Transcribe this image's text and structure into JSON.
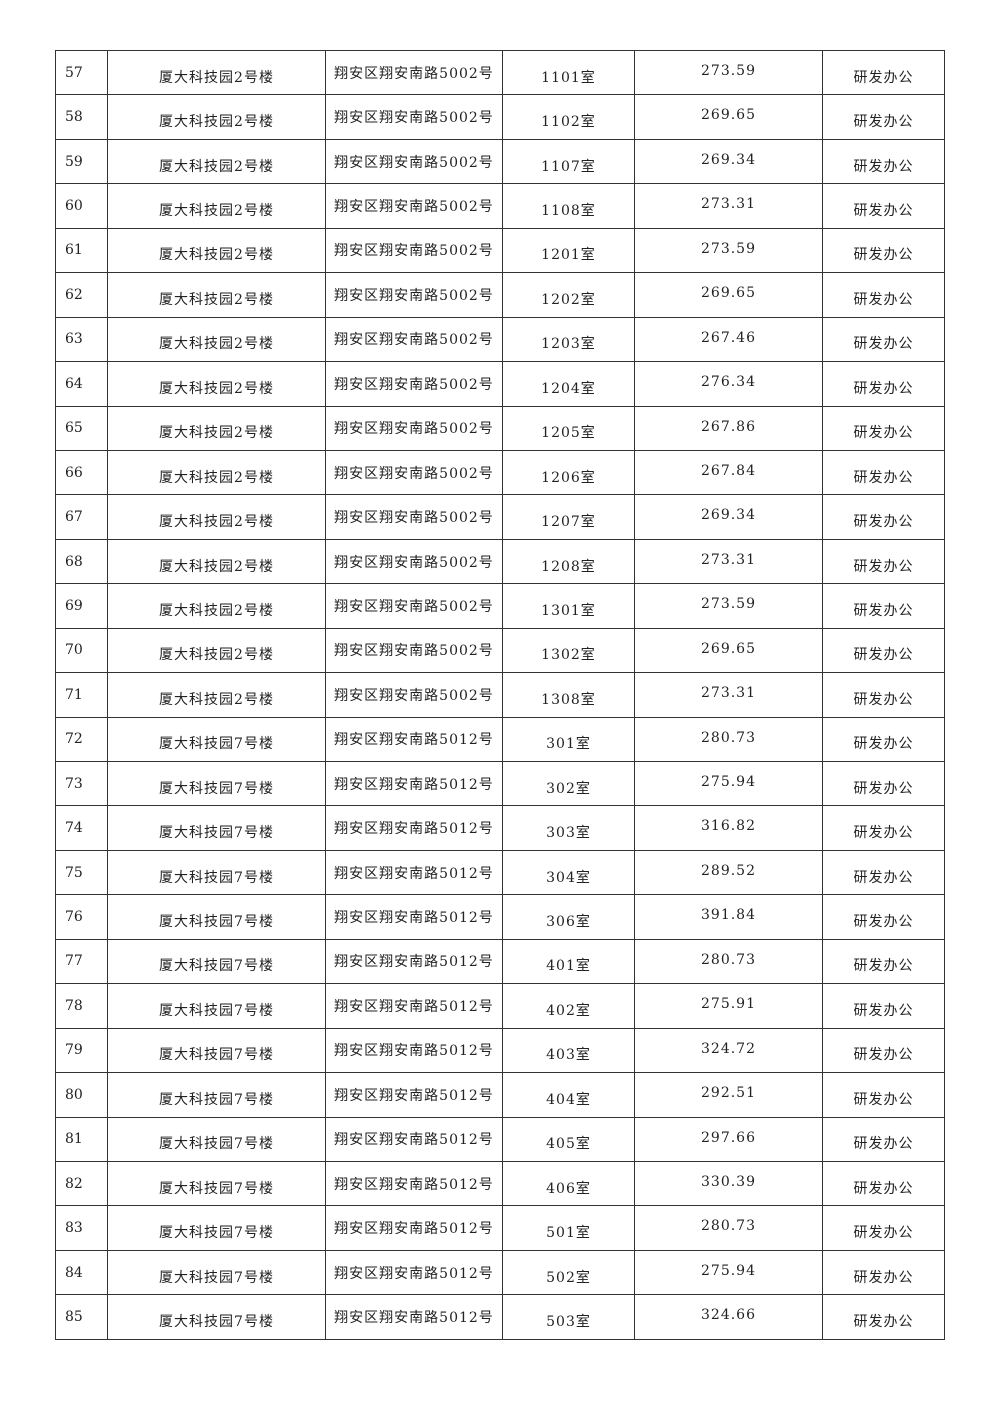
{
  "table": {
    "rows": [
      [
        "57",
        "厦大科技园2号楼",
        "翔安区翔安南路5002号",
        "1101室",
        "273.59",
        "研发办公"
      ],
      [
        "58",
        "厦大科技园2号楼",
        "翔安区翔安南路5002号",
        "1102室",
        "269.65",
        "研发办公"
      ],
      [
        "59",
        "厦大科技园2号楼",
        "翔安区翔安南路5002号",
        "1107室",
        "269.34",
        "研发办公"
      ],
      [
        "60",
        "厦大科技园2号楼",
        "翔安区翔安南路5002号",
        "1108室",
        "273.31",
        "研发办公"
      ],
      [
        "61",
        "厦大科技园2号楼",
        "翔安区翔安南路5002号",
        "1201室",
        "273.59",
        "研发办公"
      ],
      [
        "62",
        "厦大科技园2号楼",
        "翔安区翔安南路5002号",
        "1202室",
        "269.65",
        "研发办公"
      ],
      [
        "63",
        "厦大科技园2号楼",
        "翔安区翔安南路5002号",
        "1203室",
        "267.46",
        "研发办公"
      ],
      [
        "64",
        "厦大科技园2号楼",
        "翔安区翔安南路5002号",
        "1204室",
        "276.34",
        "研发办公"
      ],
      [
        "65",
        "厦大科技园2号楼",
        "翔安区翔安南路5002号",
        "1205室",
        "267.86",
        "研发办公"
      ],
      [
        "66",
        "厦大科技园2号楼",
        "翔安区翔安南路5002号",
        "1206室",
        "267.84",
        "研发办公"
      ],
      [
        "67",
        "厦大科技园2号楼",
        "翔安区翔安南路5002号",
        "1207室",
        "269.34",
        "研发办公"
      ],
      [
        "68",
        "厦大科技园2号楼",
        "翔安区翔安南路5002号",
        "1208室",
        "273.31",
        "研发办公"
      ],
      [
        "69",
        "厦大科技园2号楼",
        "翔安区翔安南路5002号",
        "1301室",
        "273.59",
        "研发办公"
      ],
      [
        "70",
        "厦大科技园2号楼",
        "翔安区翔安南路5002号",
        "1302室",
        "269.65",
        "研发办公"
      ],
      [
        "71",
        "厦大科技园2号楼",
        "翔安区翔安南路5002号",
        "1308室",
        "273.31",
        "研发办公"
      ],
      [
        "72",
        "厦大科技园7号楼",
        "翔安区翔安南路5012号",
        "301室",
        "280.73",
        "研发办公"
      ],
      [
        "73",
        "厦大科技园7号楼",
        "翔安区翔安南路5012号",
        "302室",
        "275.94",
        "研发办公"
      ],
      [
        "74",
        "厦大科技园7号楼",
        "翔安区翔安南路5012号",
        "303室",
        "316.82",
        "研发办公"
      ],
      [
        "75",
        "厦大科技园7号楼",
        "翔安区翔安南路5012号",
        "304室",
        "289.52",
        "研发办公"
      ],
      [
        "76",
        "厦大科技园7号楼",
        "翔安区翔安南路5012号",
        "306室",
        "391.84",
        "研发办公"
      ],
      [
        "77",
        "厦大科技园7号楼",
        "翔安区翔安南路5012号",
        "401室",
        "280.73",
        "研发办公"
      ],
      [
        "78",
        "厦大科技园7号楼",
        "翔安区翔安南路5012号",
        "402室",
        "275.91",
        "研发办公"
      ],
      [
        "79",
        "厦大科技园7号楼",
        "翔安区翔安南路5012号",
        "403室",
        "324.72",
        "研发办公"
      ],
      [
        "80",
        "厦大科技园7号楼",
        "翔安区翔安南路5012号",
        "404室",
        "292.51",
        "研发办公"
      ],
      [
        "81",
        "厦大科技园7号楼",
        "翔安区翔安南路5012号",
        "405室",
        "297.66",
        "研发办公"
      ],
      [
        "82",
        "厦大科技园7号楼",
        "翔安区翔安南路5012号",
        "406室",
        "330.39",
        "研发办公"
      ],
      [
        "83",
        "厦大科技园7号楼",
        "翔安区翔安南路5012号",
        "501室",
        "280.73",
        "研发办公"
      ],
      [
        "84",
        "厦大科技园7号楼",
        "翔安区翔安南路5012号",
        "502室",
        "275.94",
        "研发办公"
      ],
      [
        "85",
        "厦大科技园7号楼",
        "翔安区翔安南路5012号",
        "503室",
        "324.66",
        "研发办公"
      ]
    ]
  }
}
